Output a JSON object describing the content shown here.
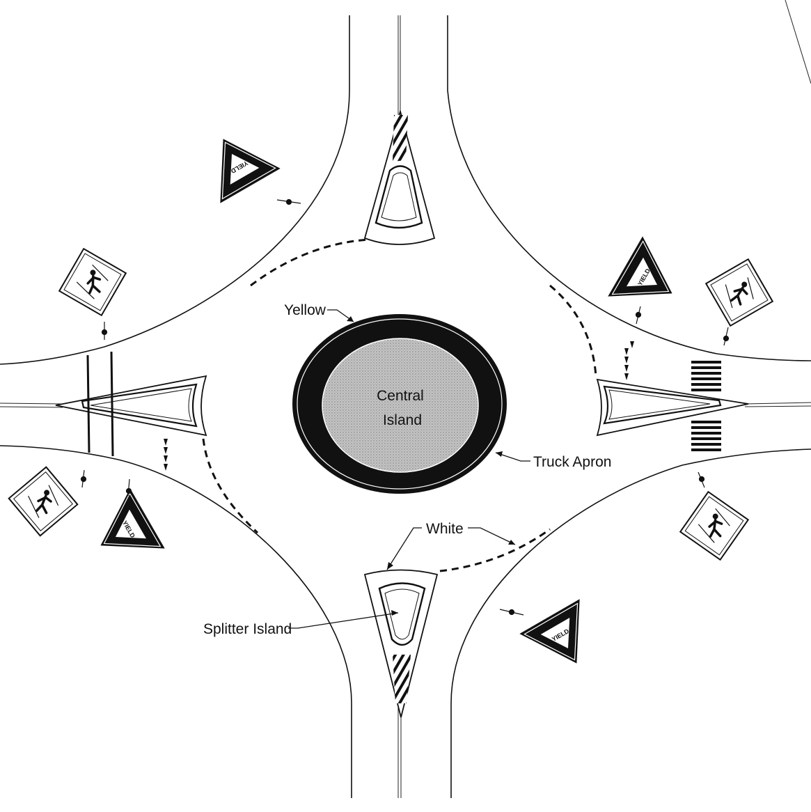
{
  "labels": {
    "yellow": "Yellow",
    "central_island_line1": "Central",
    "central_island_line2": "Island",
    "truck_apron": "Truck Apron",
    "white": "White",
    "splitter_island": "Splitter Island"
  },
  "sign_text": {
    "yield": "YIELD"
  },
  "icons": {
    "yield_sign": "yield-triangle",
    "pedestrian_crossing_sign": "pedestrian-diamond"
  },
  "colors": {
    "line": "#111111",
    "central_island_fill": "#b8b8b8",
    "truck_apron_fill": "#111111",
    "background": "#ffffff"
  }
}
